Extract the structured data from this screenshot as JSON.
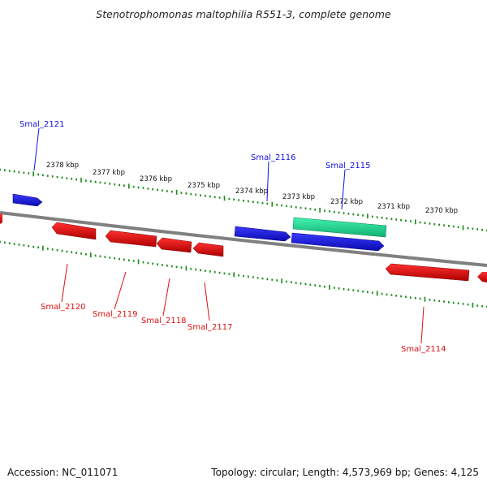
{
  "title": "Stenotrophomonas maltophilia R551-3, complete genome",
  "footer": {
    "accession": "Accession: NC_011071",
    "stats": "Topology: circular; Length: 4,573,969 bp; Genes: 4,125"
  },
  "kbp_labels": [
    "2378 kbp",
    "2377 kbp",
    "2376 kbp",
    "2375 kbp",
    "2374 kbp",
    "2373 kbp",
    "2372 kbp",
    "2371 kbp",
    "2370 kbp"
  ],
  "genes": [
    {
      "name": "Smal_2121",
      "strand": "forward",
      "color": "#1010e0"
    },
    {
      "name": "Smal_2116",
      "strand": "forward",
      "color": "#1010e0"
    },
    {
      "name": "Smal_2115",
      "strand": "forward",
      "color": "#1010e0"
    },
    {
      "name": "Smal_2120",
      "strand": "reverse",
      "color": "#dd1111"
    },
    {
      "name": "Smal_2119",
      "strand": "reverse",
      "color": "#dd1111"
    },
    {
      "name": "Smal_2118",
      "strand": "reverse",
      "color": "#dd1111"
    },
    {
      "name": "Smal_2117",
      "strand": "reverse",
      "color": "#dd1111"
    },
    {
      "name": "Smal_2114",
      "strand": "reverse",
      "color": "#dd1111"
    }
  ],
  "colors": {
    "backbone": "#808080",
    "forward_gene": "#1010e0",
    "reverse_gene": "#dd1111",
    "rna_feature": "#22dd99",
    "ticks": "#1a8a1a"
  }
}
